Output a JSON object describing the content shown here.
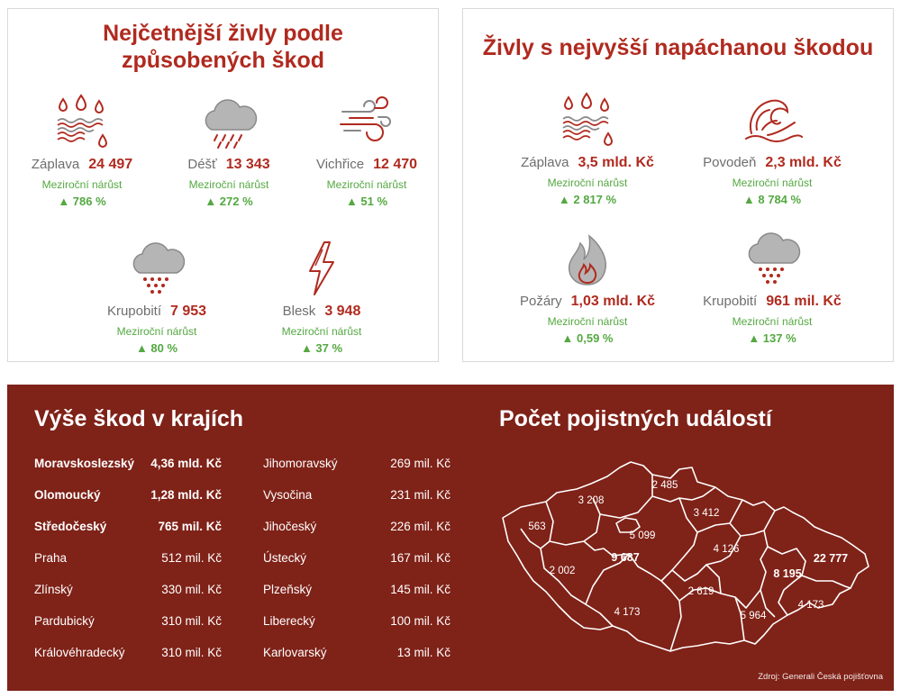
{
  "left_panel": {
    "title_line1": "Nejčetnější živly podle",
    "title_line2": "způsobených škod",
    "items": [
      {
        "icon": "flood-icon",
        "name": "Záplava",
        "value": "24 497",
        "sub": "Meziroční nárůst",
        "growth": "▲  786 %"
      },
      {
        "icon": "rain-icon",
        "name": "Déšť",
        "value": "13 343",
        "sub": "Meziroční nárůst",
        "growth": "▲  272 %"
      },
      {
        "icon": "wind-icon",
        "name": "Vichřice",
        "value": "12 470",
        "sub": "Meziroční nárůst",
        "growth": "▲  51 %"
      },
      {
        "icon": "hail-icon",
        "name": "Krupobití",
        "value": "7 953",
        "sub": "Meziroční nárůst",
        "growth": "▲  80 %"
      },
      {
        "icon": "lightning-icon",
        "name": "Blesk",
        "value": "3 948",
        "sub": "Meziroční nárůst",
        "growth": "▲  37 %"
      }
    ]
  },
  "right_panel": {
    "title": "Živly s nejvyšší napáchanou škodou",
    "items": [
      {
        "icon": "flood-icon",
        "name": "Záplava",
        "value": "3,5 mld. Kč",
        "sub": "Meziroční nárůst",
        "growth": "▲  2 817 %"
      },
      {
        "icon": "wave-icon",
        "name": "Povodeň",
        "value": "2,3 mld. Kč",
        "sub": "Meziroční nárůst",
        "growth": "▲  8 784 %"
      },
      {
        "icon": "fire-icon",
        "name": "Požáry",
        "value": "1,03 mld. Kč",
        "sub": "Meziroční nárůst",
        "growth": "▲  0,59 %"
      },
      {
        "icon": "hail-icon",
        "name": "Krupobití",
        "value": "961 mil. Kč",
        "sub": "Meziroční nárůst",
        "growth": "▲  137 %"
      }
    ]
  },
  "regions": {
    "title": "Výše škod v krajích",
    "col1": [
      {
        "name": "Moravskoslezský",
        "value": "4,36 mld. Kč",
        "bold": true
      },
      {
        "name": "Olomoucký",
        "value": "1,28 mld. Kč",
        "bold": true
      },
      {
        "name": "Středočeský",
        "value": "765 mil. Kč",
        "bold": true
      },
      {
        "name": "Praha",
        "value": "512 mil. Kč",
        "bold": false
      },
      {
        "name": "Zlínský",
        "value": "330 mil. Kč",
        "bold": false
      },
      {
        "name": "Pardubický",
        "value": "310 mil. Kč",
        "bold": false
      },
      {
        "name": "Královéhradecký",
        "value": "310 mil. Kč",
        "bold": false
      }
    ],
    "col2": [
      {
        "name": "Jihomoravský",
        "value": "269 mil. Kč",
        "bold": false
      },
      {
        "name": "Vysočina",
        "value": "231 mil. Kč",
        "bold": false
      },
      {
        "name": "Jihočeský",
        "value": "226 mil. Kč",
        "bold": false
      },
      {
        "name": "Ústecký",
        "value": "167 mil. Kč",
        "bold": false
      },
      {
        "name": "Plzeňský",
        "value": "145 mil. Kč",
        "bold": false
      },
      {
        "name": "Liberecký",
        "value": "100 mil. Kč",
        "bold": false
      },
      {
        "name": "Karlovarský",
        "value": "13 mil. Kč",
        "bold": false
      }
    ]
  },
  "map": {
    "title": "Počet pojistných událostí",
    "labels": [
      "563",
      "3 208",
      "2 485",
      "3 412",
      "5 099",
      "9 687",
      "4 126",
      "2 002",
      "2 619",
      "8 195",
      "22 777",
      "4 173",
      "5 964",
      "4 173"
    ],
    "source": "Zdroj: Generali Česká pojišťovna"
  },
  "colors": {
    "accent": "#b02a1f",
    "band": "#7f2218",
    "growth": "#54a841"
  }
}
